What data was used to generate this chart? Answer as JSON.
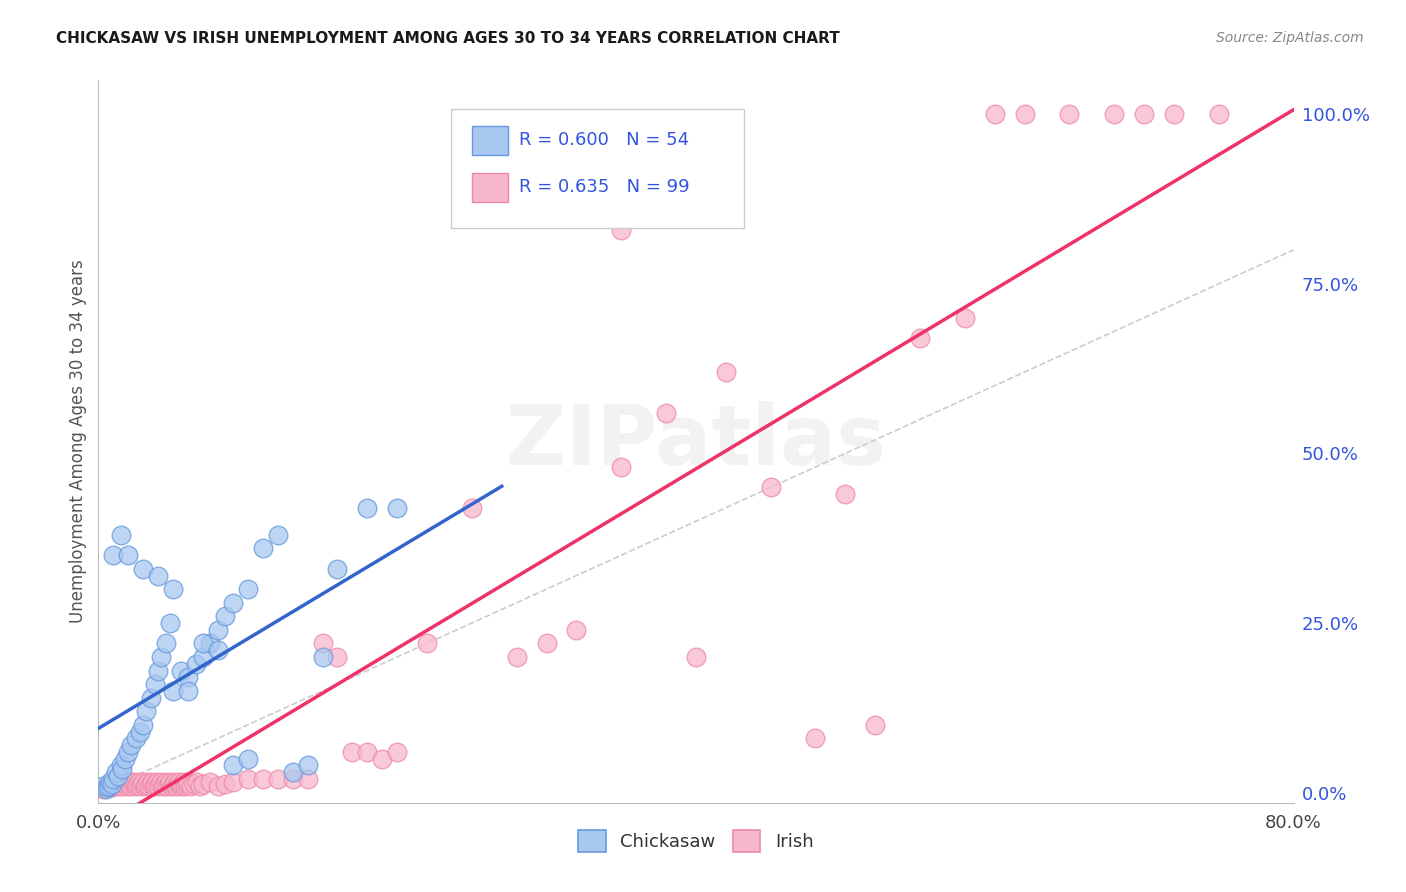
{
  "title": "CHICKASAW VS IRISH UNEMPLOYMENT AMONG AGES 30 TO 34 YEARS CORRELATION CHART",
  "source": "Source: ZipAtlas.com",
  "ylabel": "Unemployment Among Ages 30 to 34 years",
  "right_yticks": [
    0.0,
    0.25,
    0.5,
    0.75,
    1.0
  ],
  "right_yticklabels": [
    "0.0%",
    "25.0%",
    "50.0%",
    "75.0%",
    "100.0%"
  ],
  "chickasaw_color": "#A8C8F0",
  "irish_color": "#F8B8CC",
  "chickasaw_edge_color": "#6699DD",
  "irish_edge_color": "#EE88AA",
  "chickasaw_line_color": "#3366CC",
  "irish_line_color": "#EE3366",
  "ref_line_color": "#CCCCCC",
  "legend_text_color": "#3355DD",
  "chickasaw_R": 0.6,
  "chickasaw_N": 54,
  "irish_R": 0.635,
  "irish_N": 99,
  "xmin": 0.0,
  "xmax": 0.8,
  "ymin": -0.015,
  "ymax": 1.05,
  "background_color": "#FFFFFF",
  "grid_color": "#E8E8E8",
  "chickasaw_x": [
    0.003,
    0.005,
    0.006,
    0.007,
    0.008,
    0.009,
    0.01,
    0.012,
    0.013,
    0.015,
    0.016,
    0.018,
    0.02,
    0.022,
    0.025,
    0.028,
    0.03,
    0.032,
    0.035,
    0.038,
    0.04,
    0.042,
    0.045,
    0.048,
    0.05,
    0.055,
    0.06,
    0.065,
    0.07,
    0.075,
    0.08,
    0.085,
    0.09,
    0.1,
    0.11,
    0.12,
    0.13,
    0.14,
    0.15,
    0.16,
    0.18,
    0.2,
    0.01,
    0.015,
    0.02,
    0.03,
    0.04,
    0.05,
    0.06,
    0.07,
    0.08,
    0.09,
    0.1
  ],
  "chickasaw_y": [
    0.01,
    0.005,
    0.008,
    0.01,
    0.015,
    0.012,
    0.02,
    0.03,
    0.025,
    0.04,
    0.035,
    0.05,
    0.06,
    0.07,
    0.08,
    0.09,
    0.1,
    0.12,
    0.14,
    0.16,
    0.18,
    0.2,
    0.22,
    0.25,
    0.15,
    0.18,
    0.17,
    0.19,
    0.2,
    0.22,
    0.24,
    0.26,
    0.28,
    0.3,
    0.36,
    0.38,
    0.03,
    0.04,
    0.2,
    0.33,
    0.42,
    0.42,
    0.35,
    0.38,
    0.35,
    0.33,
    0.32,
    0.3,
    0.15,
    0.22,
    0.21,
    0.04,
    0.05
  ],
  "irish_x": [
    0.003,
    0.005,
    0.007,
    0.008,
    0.009,
    0.01,
    0.011,
    0.012,
    0.013,
    0.014,
    0.015,
    0.016,
    0.017,
    0.018,
    0.019,
    0.02,
    0.021,
    0.022,
    0.023,
    0.024,
    0.025,
    0.026,
    0.027,
    0.028,
    0.029,
    0.03,
    0.031,
    0.032,
    0.033,
    0.034,
    0.035,
    0.036,
    0.037,
    0.038,
    0.039,
    0.04,
    0.041,
    0.042,
    0.043,
    0.044,
    0.045,
    0.046,
    0.047,
    0.048,
    0.049,
    0.05,
    0.051,
    0.052,
    0.053,
    0.054,
    0.055,
    0.056,
    0.057,
    0.058,
    0.059,
    0.06,
    0.062,
    0.064,
    0.066,
    0.068,
    0.07,
    0.075,
    0.08,
    0.085,
    0.09,
    0.1,
    0.11,
    0.12,
    0.13,
    0.14,
    0.15,
    0.16,
    0.17,
    0.18,
    0.19,
    0.2,
    0.22,
    0.25,
    0.28,
    0.3,
    0.32,
    0.35,
    0.38,
    0.4,
    0.42,
    0.45,
    0.48,
    0.5,
    0.52,
    0.55,
    0.58,
    0.6,
    0.62,
    0.65,
    0.68,
    0.7,
    0.72,
    0.75,
    0.35
  ],
  "irish_y": [
    0.005,
    0.008,
    0.01,
    0.012,
    0.008,
    0.01,
    0.012,
    0.015,
    0.01,
    0.012,
    0.015,
    0.01,
    0.012,
    0.015,
    0.01,
    0.012,
    0.015,
    0.01,
    0.012,
    0.015,
    0.01,
    0.012,
    0.015,
    0.01,
    0.012,
    0.015,
    0.01,
    0.012,
    0.015,
    0.01,
    0.012,
    0.015,
    0.01,
    0.012,
    0.015,
    0.01,
    0.012,
    0.015,
    0.01,
    0.012,
    0.015,
    0.01,
    0.012,
    0.015,
    0.01,
    0.012,
    0.015,
    0.01,
    0.012,
    0.015,
    0.01,
    0.012,
    0.015,
    0.01,
    0.012,
    0.015,
    0.01,
    0.012,
    0.015,
    0.01,
    0.012,
    0.015,
    0.01,
    0.012,
    0.015,
    0.02,
    0.02,
    0.02,
    0.02,
    0.02,
    0.22,
    0.2,
    0.06,
    0.06,
    0.05,
    0.06,
    0.22,
    0.42,
    0.2,
    0.22,
    0.24,
    0.48,
    0.56,
    0.2,
    0.62,
    0.45,
    0.08,
    0.44,
    0.1,
    0.67,
    0.7,
    1.0,
    1.0,
    1.0,
    1.0,
    1.0,
    1.0,
    1.0,
    0.83
  ]
}
